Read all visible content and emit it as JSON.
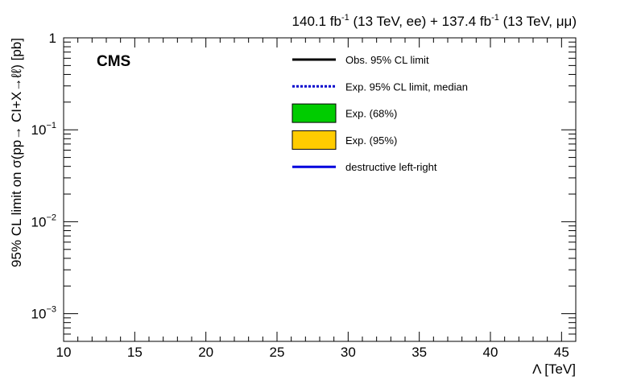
{
  "header": {
    "lumi_ee": "140.1 fb",
    "lumi_ee_sup": "-1",
    "lumi_ee_rest": " (13 TeV, ee) + ",
    "lumi_mm": "137.4 fb",
    "lumi_mm_sup": "-1",
    "lumi_mm_rest": " (13 TeV, μμ)"
  },
  "cms_label": "CMS",
  "chart_data": {
    "type": "line",
    "xlabel": "Λ [TeV]",
    "ylabel": "95% CL limit on σ(pp→ CI+X→ℓℓ) [pb]",
    "xlim": [
      10,
      46
    ],
    "ylim": [
      0.0005,
      1
    ],
    "yscale": "log",
    "x_ticks": [
      10,
      15,
      20,
      25,
      30,
      35,
      40,
      45
    ],
    "y_ticks": [
      {
        "value": 1,
        "base": "1",
        "exp": ""
      },
      {
        "value": 0.1,
        "base": "10",
        "exp": "−1"
      },
      {
        "value": 0.01,
        "base": "10",
        "exp": "−2"
      },
      {
        "value": 0.001,
        "base": "10",
        "exp": "−3"
      }
    ],
    "grid": false,
    "legend_placement": "top-right",
    "legend": [
      {
        "label": "Obs. 95% CL limit",
        "style": "solid-line",
        "color": "#000000"
      },
      {
        "label": "Exp. 95% CL limit, median",
        "style": "dotted-line",
        "color": "#0000cc"
      },
      {
        "label": "Exp. (68%)",
        "style": "box",
        "color": "#00cc00"
      },
      {
        "label": "Exp. (95%)",
        "style": "box",
        "color": "#ffcc00"
      },
      {
        "label": "destructive left-right",
        "style": "solid-line",
        "color": "#0000dd"
      }
    ],
    "series": []
  }
}
